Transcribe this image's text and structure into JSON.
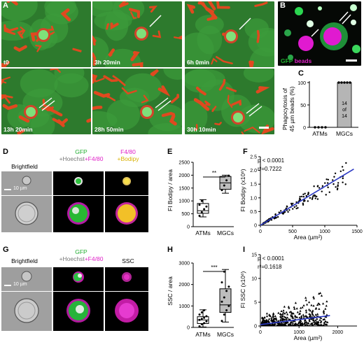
{
  "panel_letters": {
    "a": "A",
    "b": "B",
    "c": "C",
    "d": "D",
    "e": "E",
    "f": "F",
    "g": "G",
    "h": "H",
    "i": "I"
  },
  "timelapse": {
    "frames": [
      "t0",
      "3h 20min",
      "6h 0min",
      "13h 20min",
      "28h 50min",
      "30h 10min"
    ]
  },
  "panel_b": {
    "legend_gfp": "GFP",
    "legend_beads": "beads"
  },
  "panel_c": {
    "ylabel_line1": "Phagocytosis of",
    "ylabel_line2": "45 µm beads (%)",
    "yticks": [
      "0",
      "50",
      "100"
    ],
    "categories": [
      "ATMs",
      "MGCs"
    ],
    "bar_label_1": "14",
    "bar_label_2": "of",
    "bar_label_3": "14"
  },
  "panel_d": {
    "col1": "Brightfield",
    "col2_top": "GFP",
    "col2_bottom_a": "+Hoechst",
    "col2_bottom_b": "+F4/80",
    "col3_top": "F4/80",
    "col3_bottom": "+Bodipy",
    "scale": "10 µm"
  },
  "panel_e": {
    "ylabel": "FI Bodipy / area",
    "yticks": [
      "0",
      "500",
      "1000",
      "1500",
      "2000",
      "2500"
    ],
    "categories": [
      "ATMs",
      "MGCs"
    ],
    "sig": "**"
  },
  "panel_f": {
    "p": "p < 0.0001",
    "r2": "r²=0.7222",
    "ylabel": "FI Bodipy (x10⁶)",
    "xlabel": "Area (µm²)",
    "yticks": [
      "0",
      "0.5",
      "1.0",
      "1.5",
      "2.0",
      "2.5"
    ],
    "xticks": [
      "0",
      "500",
      "1000",
      "1500"
    ]
  },
  "panel_g": {
    "col1": "Brightfield",
    "col2_top": "GFP",
    "col2_bottom_a": "+Hoechst",
    "col2_bottom_b": "+F4/80",
    "col3": "SSC",
    "scale": "10 µm"
  },
  "panel_h": {
    "ylabel": "SSC / area",
    "yticks": [
      "0",
      "1000",
      "2000",
      "3000"
    ],
    "categories": [
      "ATMs",
      "MGCs"
    ],
    "sig": "***"
  },
  "panel_i": {
    "p": "p < 0.0001",
    "r2": "r²=0.1618",
    "ylabel": "FI SSC (x10⁶)",
    "xlabel": "Area (µm²)",
    "yticks": [
      "0",
      "5",
      "10",
      "15"
    ],
    "xticks": [
      "0",
      "1000",
      "2000"
    ]
  },
  "chart_data": [
    {
      "type": "bar",
      "panel": "C",
      "categories": [
        "ATMs",
        "MGCs"
      ],
      "values": [
        0,
        100
      ],
      "ylim": [
        0,
        100
      ]
    },
    {
      "type": "box",
      "panel": "E",
      "categories": [
        "ATMs",
        "MGCs"
      ],
      "ylim": [
        0,
        2500
      ],
      "points": {
        "ATMs": [
          420,
          560,
          680,
          780,
          850,
          1000
        ],
        "MGCs": [
          1420,
          1600,
          1800,
          1980
        ]
      },
      "box": {
        "ATMs": {
          "min": 380,
          "q1": 520,
          "median": 620,
          "q3": 900,
          "max": 1050
        },
        "MGCs": {
          "min": 1300,
          "q1": 1450,
          "median": 1700,
          "q3": 1950,
          "max": 2000
        }
      }
    },
    {
      "type": "scatter",
      "panel": "F",
      "xlim": [
        0,
        1500
      ],
      "ylim": [
        0,
        2.5
      ],
      "fit": {
        "x": [
          0,
          1450
        ],
        "y": [
          0,
          2.05
        ]
      }
    },
    {
      "type": "box",
      "panel": "H",
      "categories": [
        "ATMs",
        "MGCs"
      ],
      "ylim": [
        0,
        3000
      ],
      "points": {
        "ATMs": [
          50,
          150,
          200,
          280,
          350,
          400,
          450,
          520,
          600,
          700,
          800
        ],
        "MGCs": [
          300,
          600,
          800,
          1000,
          1200,
          1400,
          1700,
          1900,
          2100,
          2600
        ]
      },
      "box": {
        "ATMs": {
          "min": 20,
          "q1": 180,
          "median": 350,
          "q3": 500,
          "max": 820
        },
        "MGCs": {
          "min": 250,
          "q1": 700,
          "median": 1050,
          "q3": 1800,
          "max": 2700
        }
      }
    },
    {
      "type": "scatter",
      "panel": "I",
      "xlim": [
        0,
        2500
      ],
      "ylim": [
        0,
        15
      ],
      "fit": {
        "x": [
          0,
          1800
        ],
        "y": [
          0.3,
          2.2
        ]
      }
    }
  ]
}
